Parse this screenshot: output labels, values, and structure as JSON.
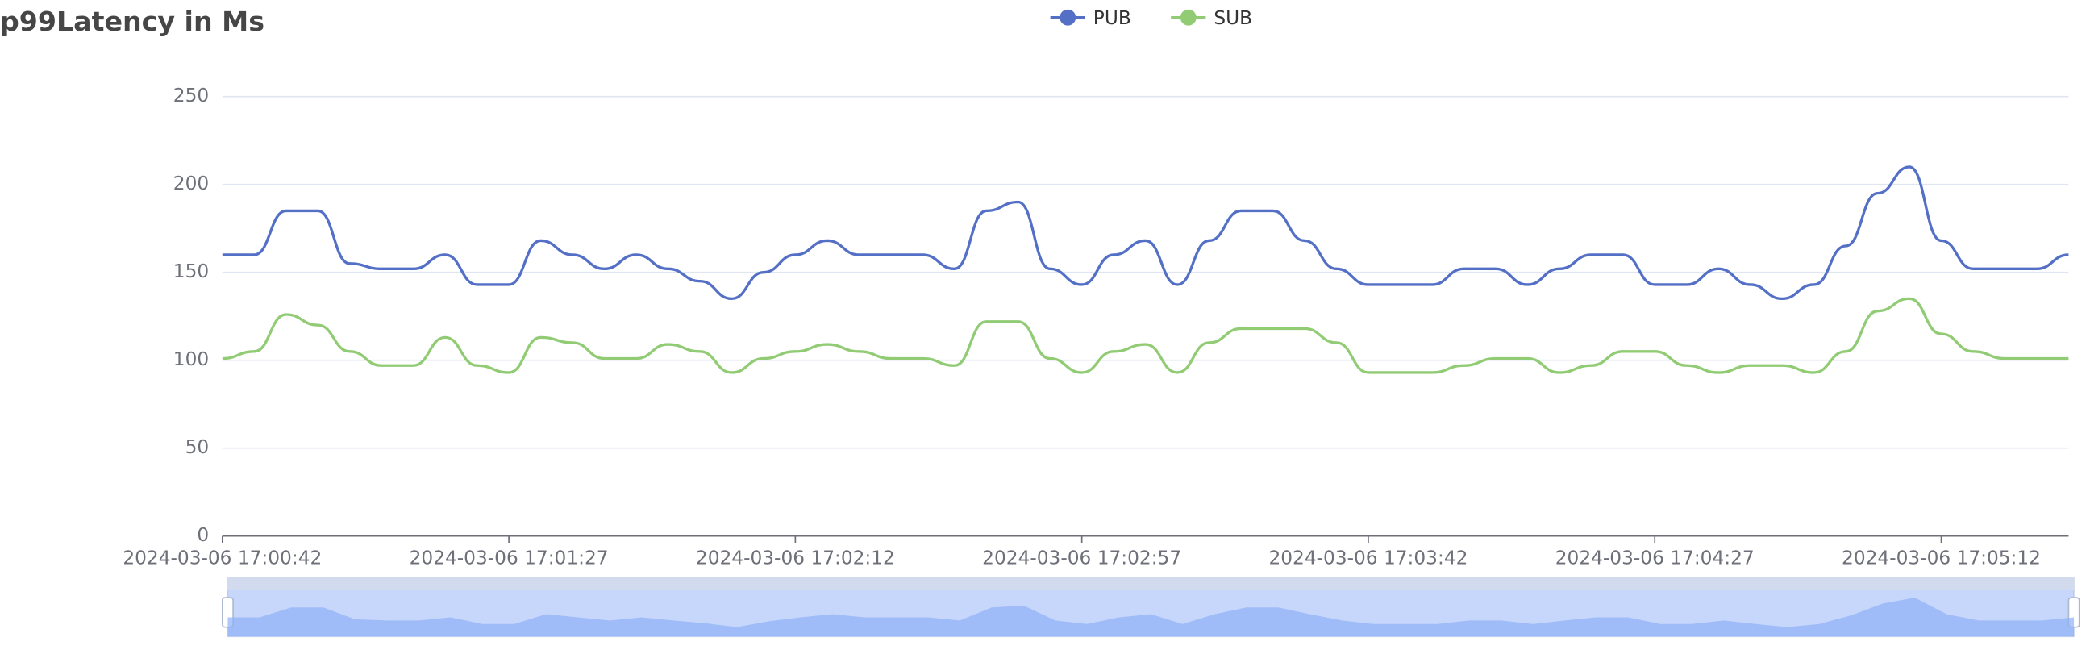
{
  "chart_data": {
    "type": "line",
    "title": "p99Latency in Ms",
    "categories": [
      "2024-03-06 17:00:42",
      null,
      null,
      null,
      null,
      null,
      null,
      null,
      null,
      "2024-03-06 17:01:27",
      null,
      null,
      null,
      null,
      null,
      null,
      null,
      null,
      "2024-03-06 17:02:12",
      null,
      null,
      null,
      null,
      null,
      null,
      null,
      null,
      "2024-03-06 17:02:57",
      null,
      null,
      null,
      null,
      null,
      null,
      null,
      null,
      "2024-03-06 17:03:42",
      null,
      null,
      null,
      null,
      null,
      null,
      null,
      null,
      "2024-03-06 17:04:27",
      null,
      null,
      null,
      null,
      null,
      null,
      null,
      null,
      "2024-03-06 17:05:12",
      null,
      null,
      null,
      null
    ],
    "series": [
      {
        "name": "PUB",
        "color": "#5470c6",
        "values": [
          160,
          160,
          185,
          185,
          155,
          152,
          152,
          160,
          143,
          143,
          168,
          160,
          152,
          160,
          152,
          145,
          135,
          150,
          160,
          168,
          160,
          160,
          160,
          152,
          185,
          190,
          152,
          143,
          160,
          168,
          143,
          168,
          185,
          185,
          168,
          152,
          143,
          143,
          143,
          152,
          152,
          143,
          152,
          160,
          160,
          143,
          143,
          152,
          143,
          135,
          143,
          165,
          195,
          210,
          168,
          152,
          152,
          152,
          160
        ]
      },
      {
        "name": "SUB",
        "color": "#91cc75",
        "values": [
          101,
          105,
          126,
          120,
          105,
          97,
          97,
          113,
          97,
          93,
          113,
          110,
          101,
          101,
          109,
          105,
          93,
          101,
          105,
          109,
          105,
          101,
          101,
          97,
          122,
          122,
          101,
          93,
          105,
          109,
          93,
          110,
          118,
          118,
          118,
          110,
          93,
          93,
          93,
          97,
          101,
          101,
          93,
          97,
          105,
          105,
          97,
          93,
          97,
          97,
          93,
          105,
          128,
          135,
          115,
          105,
          101,
          101,
          101
        ]
      }
    ],
    "ylim": [
      0,
      250
    ],
    "yticks": [
      0,
      50,
      100,
      150,
      200,
      250
    ],
    "grid": true,
    "legend": "top"
  }
}
